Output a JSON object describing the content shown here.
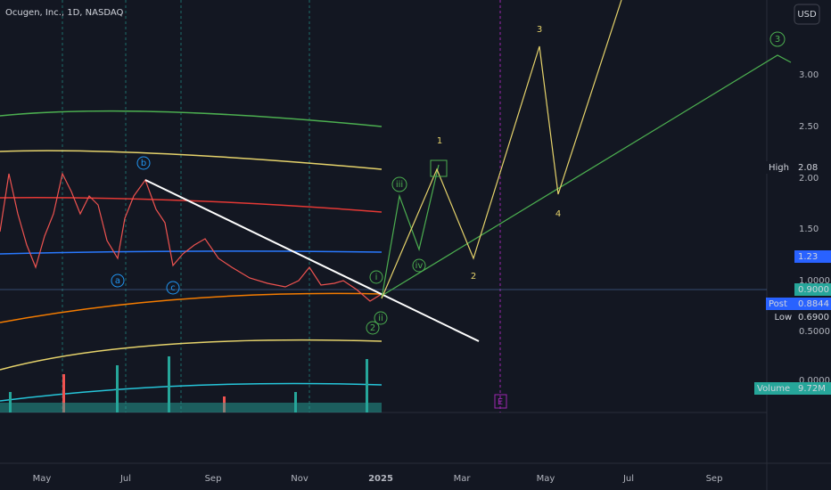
{
  "header": {
    "title": "Ocugen, Inc., 1D, NASDAQ",
    "currency": "USD"
  },
  "price_axis": [
    "3.00",
    "2.50",
    "2.00",
    "1.50",
    "1.0000",
    "0.5000",
    "0.0000"
  ],
  "badges": [
    {
      "label": "High",
      "value": "2.08"
    },
    {
      "value": "1.23"
    },
    {
      "value": "0.9000"
    },
    {
      "label": "Post",
      "value": "0.8844"
    },
    {
      "label": "Low",
      "value": "0.6900"
    },
    {
      "label": "Volume",
      "value": "9.72M"
    }
  ],
  "time_axis": [
    "May",
    "Jul",
    "Sep",
    "Nov",
    "2025",
    "Mar",
    "May",
    "Jul",
    "Sep"
  ],
  "waves": {
    "major": [
      "1",
      "2",
      "3",
      "4"
    ],
    "minor": [
      "i",
      "ii",
      "iii",
      "iv"
    ],
    "circled": [
      "2",
      "3"
    ],
    "corrective": [
      "a",
      "b",
      "c"
    ]
  },
  "event": "E"
}
